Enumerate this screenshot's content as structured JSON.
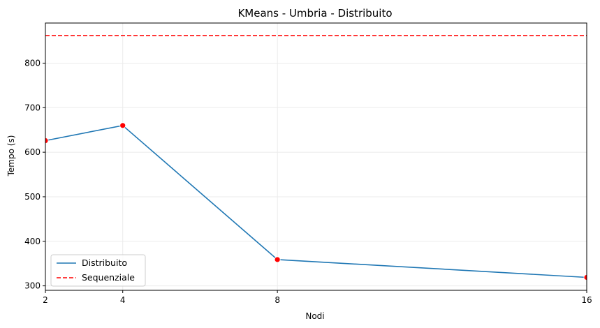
{
  "chart_data": {
    "type": "line",
    "title": "KMeans - Umbria - Distribuito",
    "xlabel": "Nodi",
    "ylabel": "Tempo (s)",
    "x": [
      2,
      4,
      8,
      16
    ],
    "xticks": [
      "2",
      "4",
      "8",
      "16"
    ],
    "yticks": [
      "300",
      "400",
      "500",
      "600",
      "700",
      "800"
    ],
    "xlim": [
      2,
      16
    ],
    "ylim": [
      290,
      890
    ],
    "grid": true,
    "legend_position": "lower-left",
    "series": [
      {
        "name": "Distribuito",
        "values": [
          626,
          660,
          359,
          319
        ],
        "color": "#1f77b4",
        "marker_color": "#ff0000",
        "style": "solid"
      }
    ],
    "reference_lines": [
      {
        "name": "Sequenziale",
        "value": 862,
        "color": "#ff0000",
        "style": "dashed"
      }
    ]
  }
}
